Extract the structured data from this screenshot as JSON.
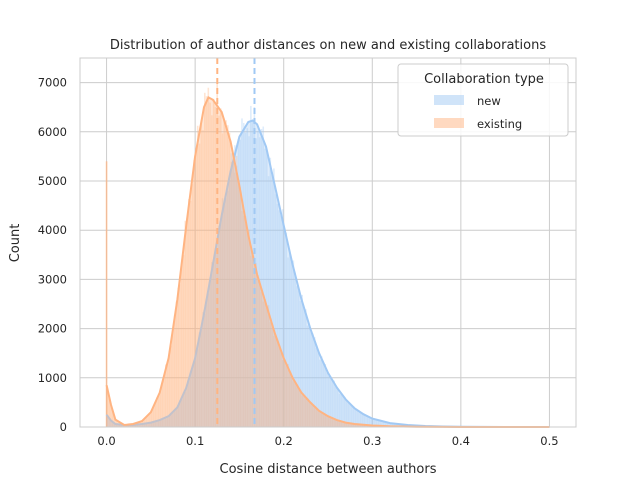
{
  "chart_data": {
    "type": "area",
    "title": "Distribution of author distances on new and existing collaborations",
    "xlabel": "Cosine distance between authors",
    "ylabel": "Count",
    "xlim": [
      -0.03,
      0.53
    ],
    "ylim": [
      0,
      7500
    ],
    "x_ticks": [
      0.0,
      0.1,
      0.2,
      0.3,
      0.4,
      0.5
    ],
    "x_tick_labels": [
      "0.0",
      "0.1",
      "0.2",
      "0.3",
      "0.4",
      "0.5"
    ],
    "y_ticks": [
      0,
      1000,
      2000,
      3000,
      4000,
      5000,
      6000,
      7000
    ],
    "y_tick_labels": [
      "0",
      "1000",
      "2000",
      "3000",
      "4000",
      "5000",
      "6000",
      "7000"
    ],
    "grid": true,
    "legend": {
      "title": "Collaboration type",
      "placement": "top-right"
    },
    "series": [
      {
        "name": "new",
        "color": "#a1c9f4",
        "mean": 0.167,
        "kde": [
          [
            0.0,
            250
          ],
          [
            0.005,
            130
          ],
          [
            0.01,
            60
          ],
          [
            0.02,
            40
          ],
          [
            0.03,
            40
          ],
          [
            0.04,
            60
          ],
          [
            0.05,
            90
          ],
          [
            0.06,
            140
          ],
          [
            0.07,
            220
          ],
          [
            0.08,
            400
          ],
          [
            0.09,
            800
          ],
          [
            0.1,
            1400
          ],
          [
            0.11,
            2300
          ],
          [
            0.12,
            3300
          ],
          [
            0.13,
            4300
          ],
          [
            0.14,
            5200
          ],
          [
            0.15,
            5900
          ],
          [
            0.16,
            6200
          ],
          [
            0.165,
            6230
          ],
          [
            0.17,
            6150
          ],
          [
            0.18,
            5700
          ],
          [
            0.19,
            4900
          ],
          [
            0.2,
            4100
          ],
          [
            0.21,
            3300
          ],
          [
            0.22,
            2600
          ],
          [
            0.23,
            2000
          ],
          [
            0.24,
            1500
          ],
          [
            0.25,
            1100
          ],
          [
            0.26,
            800
          ],
          [
            0.27,
            560
          ],
          [
            0.28,
            380
          ],
          [
            0.29,
            260
          ],
          [
            0.3,
            170
          ],
          [
            0.32,
            80
          ],
          [
            0.34,
            40
          ],
          [
            0.36,
            20
          ],
          [
            0.38,
            10
          ],
          [
            0.4,
            5
          ],
          [
            0.45,
            0
          ],
          [
            0.5,
            0
          ]
        ]
      },
      {
        "name": "existing",
        "color": "#ffb482",
        "mean": 0.125,
        "kde": [
          [
            0.0,
            850
          ],
          [
            0.005,
            450
          ],
          [
            0.01,
            150
          ],
          [
            0.02,
            40
          ],
          [
            0.03,
            60
          ],
          [
            0.04,
            120
          ],
          [
            0.05,
            300
          ],
          [
            0.06,
            700
          ],
          [
            0.07,
            1400
          ],
          [
            0.08,
            2600
          ],
          [
            0.09,
            4100
          ],
          [
            0.1,
            5500
          ],
          [
            0.11,
            6500
          ],
          [
            0.115,
            6700
          ],
          [
            0.12,
            6650
          ],
          [
            0.13,
            6400
          ],
          [
            0.14,
            5800
          ],
          [
            0.15,
            4900
          ],
          [
            0.16,
            3900
          ],
          [
            0.17,
            3100
          ],
          [
            0.18,
            2500
          ],
          [
            0.19,
            1900
          ],
          [
            0.2,
            1400
          ],
          [
            0.21,
            1000
          ],
          [
            0.22,
            700
          ],
          [
            0.23,
            500
          ],
          [
            0.24,
            330
          ],
          [
            0.25,
            220
          ],
          [
            0.26,
            140
          ],
          [
            0.27,
            90
          ],
          [
            0.28,
            60
          ],
          [
            0.3,
            30
          ],
          [
            0.32,
            15
          ],
          [
            0.35,
            5
          ],
          [
            0.4,
            0
          ],
          [
            0.5,
            0
          ]
        ]
      }
    ]
  }
}
